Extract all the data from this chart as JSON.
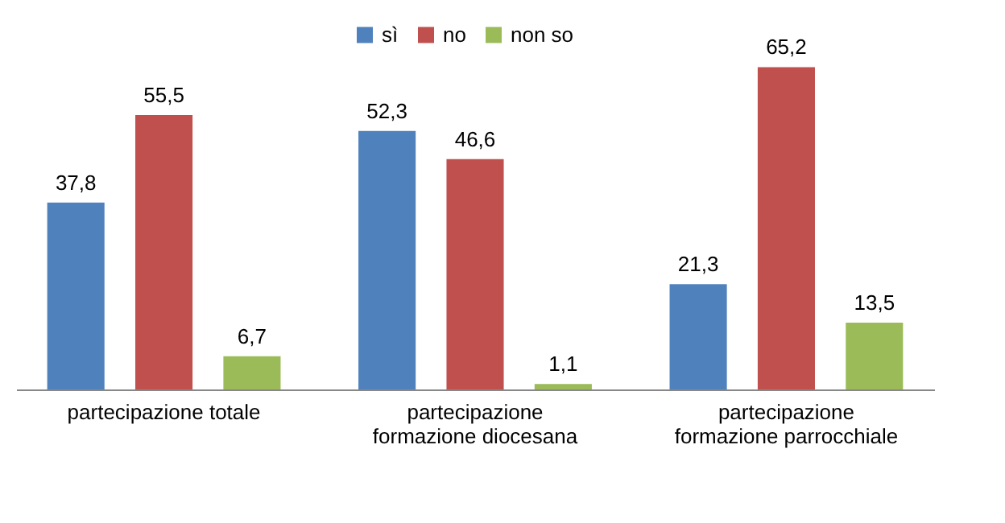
{
  "chart_data": {
    "type": "bar",
    "categories": [
      "partecipazione totale",
      "partecipazione\nformazione diocesana",
      "partecipazione\nformazione parrocchiale"
    ],
    "series": [
      {
        "name": "sì",
        "color": "#4f81bd",
        "values": [
          37.8,
          52.3,
          21.3
        ],
        "value_labels": [
          "37,8",
          "52,3",
          "21,3"
        ]
      },
      {
        "name": "no",
        "color": "#c0504d",
        "values": [
          55.5,
          46.6,
          65.2
        ],
        "value_labels": [
          "55,5",
          "46,6",
          "65,2"
        ]
      },
      {
        "name": "non so",
        "color": "#9bbb59",
        "values": [
          6.7,
          1.1,
          13.5
        ],
        "value_labels": [
          "6,7",
          "1,1",
          "13,5"
        ]
      }
    ],
    "legend": "top",
    "grid": false
  }
}
